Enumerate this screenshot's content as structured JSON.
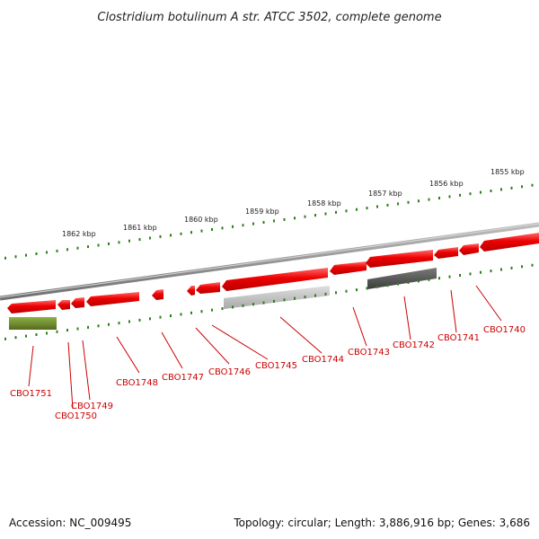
{
  "title": "Clostridium botulinum A str. ATCC 3502, complete genome",
  "accession": "Accession: NC_009495",
  "topology": "Topology: circular; Length: 3,886,916 bp; Genes: 3,686",
  "kbp_ticks": [
    "1862 kbp",
    "1861 kbp",
    "1860 kbp",
    "1859 kbp",
    "1858 kbp",
    "1857 kbp",
    "1856 kbp",
    "1855 kbp"
  ],
  "gene_labels": [
    "CBO1751",
    "CBO1750",
    "CBO1749",
    "CBO1748",
    "CBO1747",
    "CBO1746",
    "CBO1745",
    "CBO1744",
    "CBO1743",
    "CBO1742",
    "CBO1741",
    "CBO1740"
  ],
  "colors": {
    "gene_red": "#ee0000",
    "backbone": "#888888",
    "tick_green": "#2e7d1e",
    "label_red": "#cc0000",
    "olive_gene": "#6b8e23",
    "light_gray_gene": "#bbbbbb",
    "dark_gray_gene": "#555555"
  }
}
